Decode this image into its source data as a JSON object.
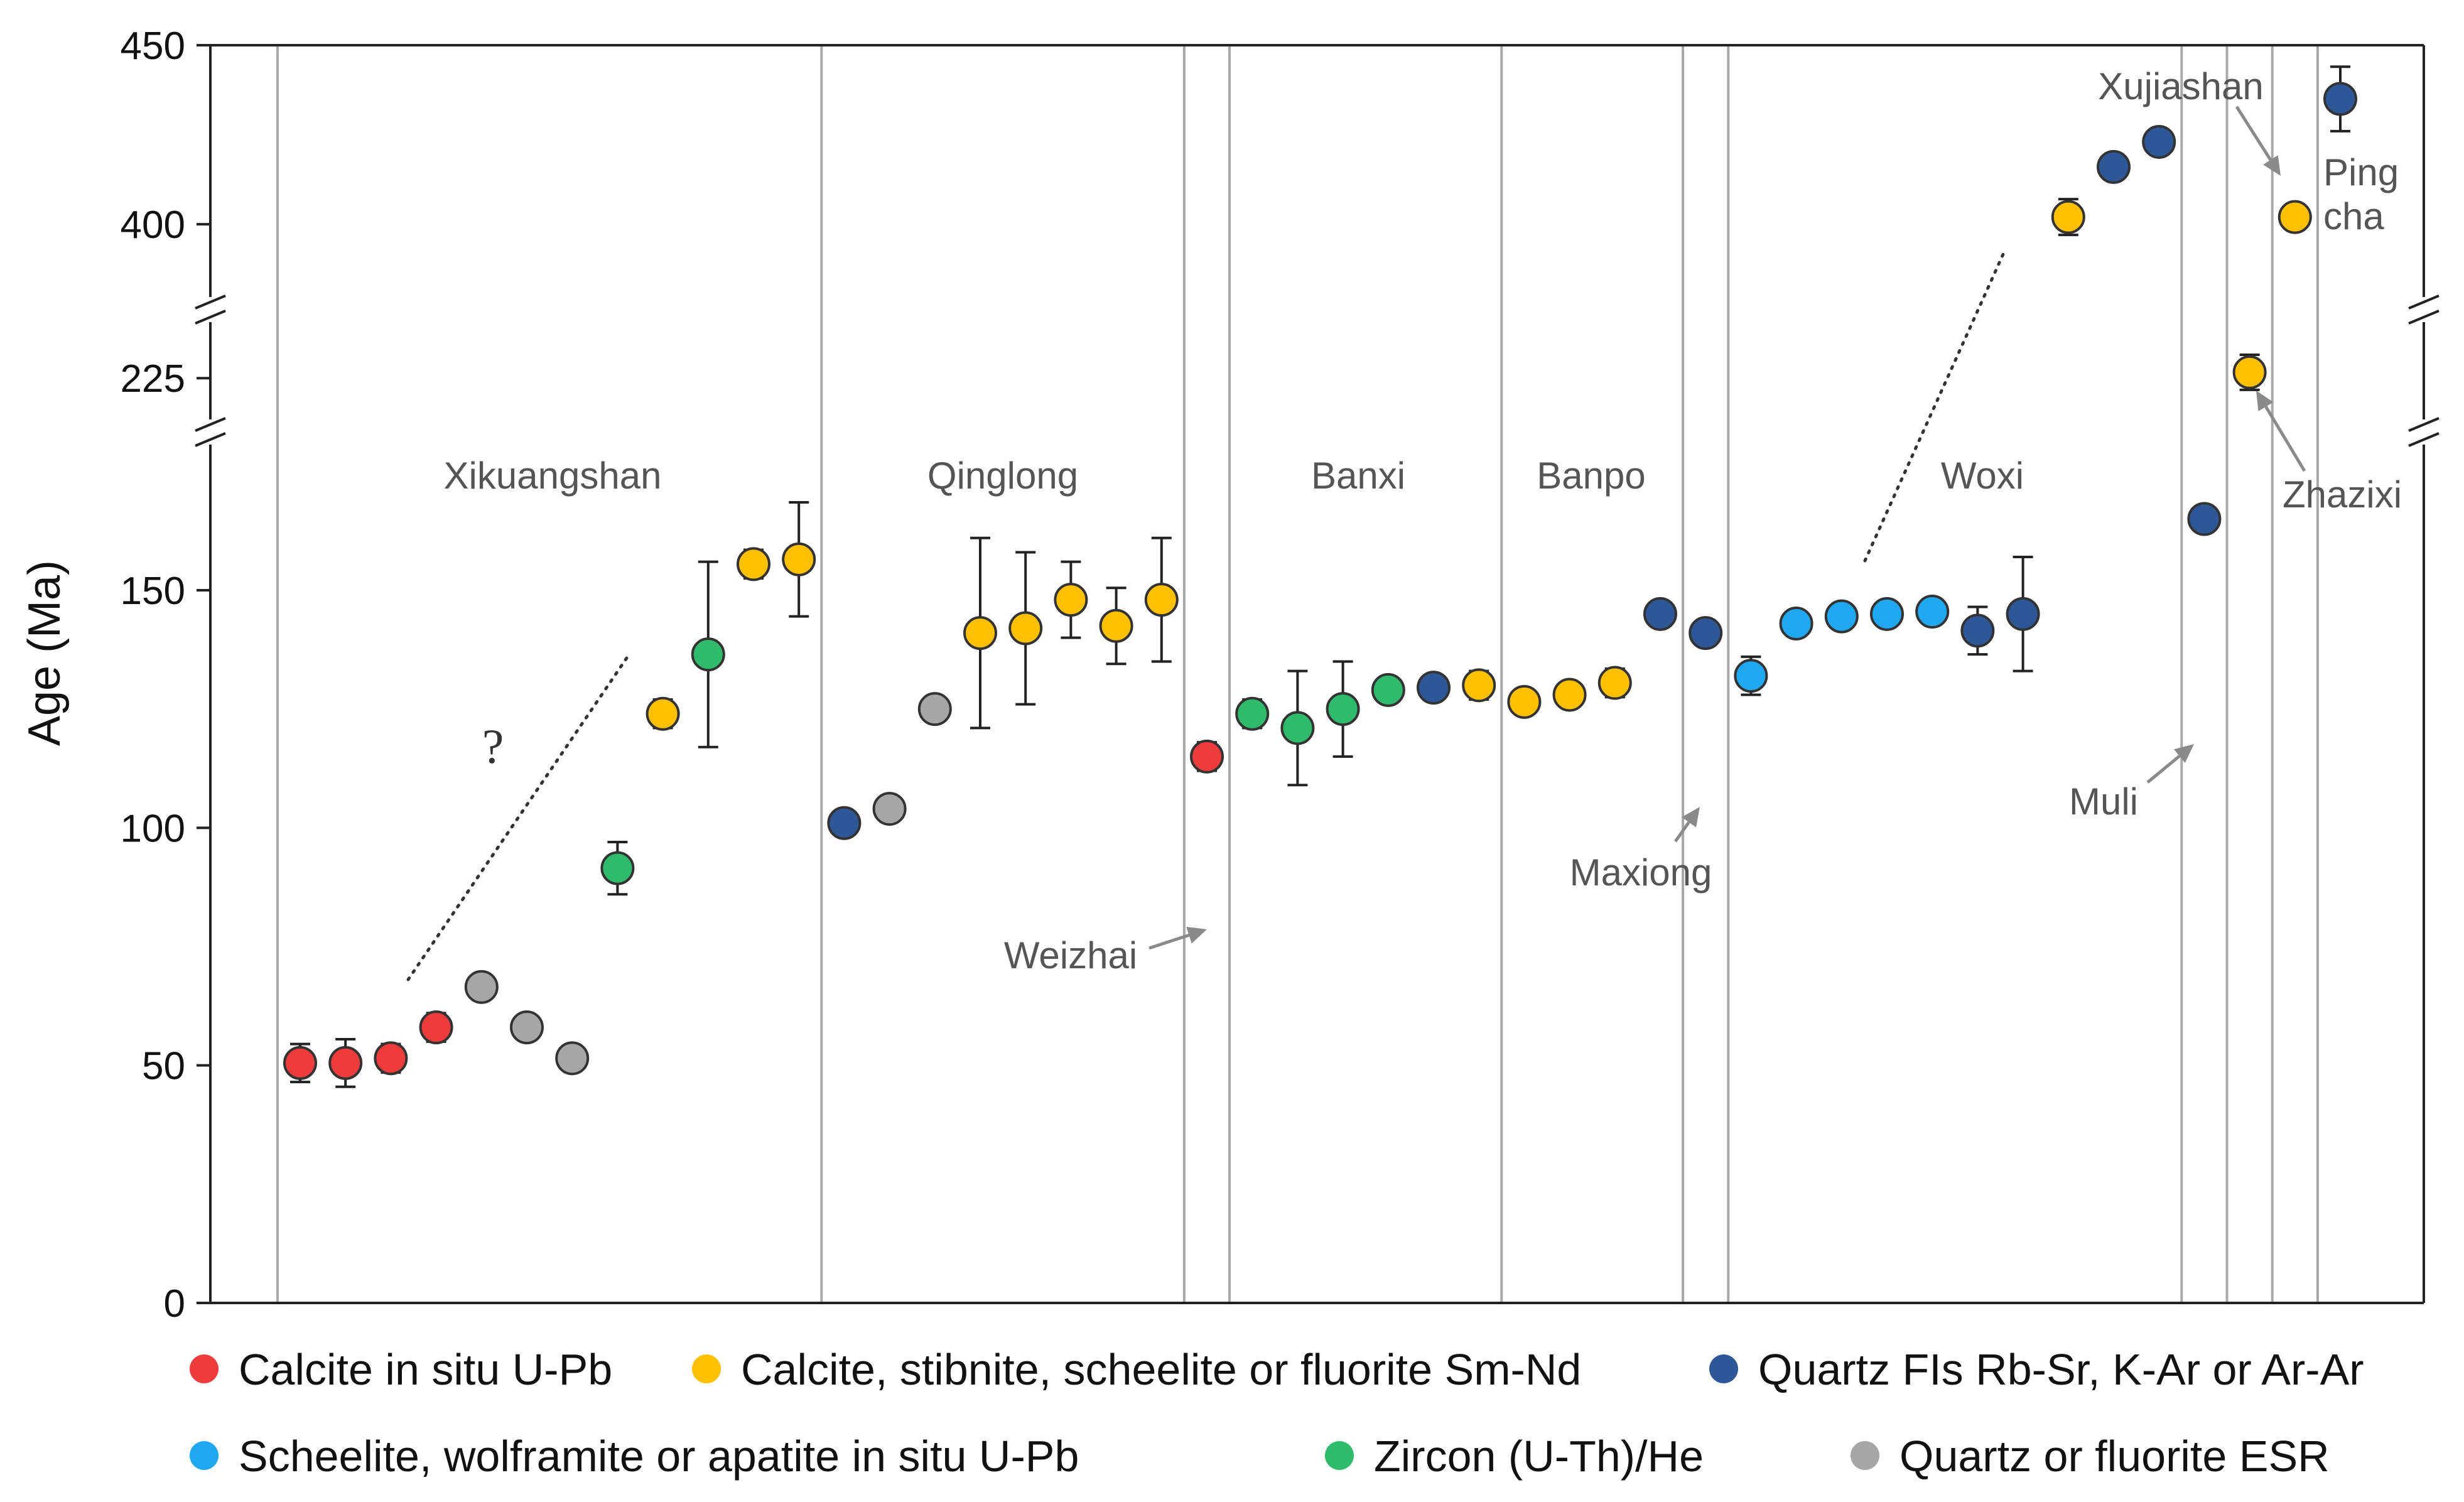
{
  "chart_data": {
    "type": "scatter",
    "title": "",
    "xlabel": "",
    "ylabel": "Age (Ma)",
    "y_axis": {
      "segments": [
        {
          "range": [
            0,
            180
          ],
          "ticks": [
            0,
            50,
            100,
            150
          ]
        },
        {
          "range": [
            213,
            232
          ],
          "ticks": [
            225
          ]
        },
        {
          "range": [
            383,
            450
          ],
          "ticks": [
            400,
            450
          ]
        }
      ],
      "tick_labels": [
        "0",
        "50",
        "100",
        "150",
        "225",
        "400",
        "450"
      ]
    },
    "deposits": [
      {
        "name": "Xikuangshan",
        "from_index": 0,
        "to_index": 12
      },
      {
        "name": "Qinglong",
        "from_index": 12,
        "to_index": 20
      },
      {
        "name": "Weizhai",
        "from_index": 20,
        "to_index": 21
      },
      {
        "name": "Banxi",
        "from_index": 21,
        "to_index": 27
      },
      {
        "name": "Banpo",
        "from_index": 27,
        "to_index": 31
      },
      {
        "name": "Maxiong",
        "from_index": 31,
        "to_index": 32
      },
      {
        "name": "Woxi",
        "from_index": 32,
        "to_index": 42
      },
      {
        "name": "Muli",
        "from_index": 42,
        "to_index": 43
      },
      {
        "name": "Zhazixi",
        "from_index": 43,
        "to_index": 44
      },
      {
        "name": "Xujiashan",
        "from_index": 44,
        "to_index": 45
      },
      {
        "name": "Ping cha",
        "from_index": 45,
        "to_index": 46
      }
    ],
    "annotations": {
      "question_mark": "?",
      "pingcha_line1": "Ping",
      "pingcha_line2": "cha"
    },
    "series": [
      {
        "key": "calcite_upb",
        "name": "Calcite in situ U-Pb",
        "color": "#ee3b3b",
        "points": [
          {
            "x": 0,
            "y": 50.5,
            "err": 4
          },
          {
            "x": 1,
            "y": 50.5,
            "err": 5
          },
          {
            "x": 2,
            "y": 51.5,
            "err": 3
          },
          {
            "x": 3,
            "y": 58,
            "err": 3
          },
          {
            "x": 20,
            "y": 115,
            "err": 3
          }
        ]
      },
      {
        "key": "smnd",
        "name": "Calcite, stibnite, scheelite or fluorite Sm-Nd",
        "color": "#ffc000",
        "points": [
          {
            "x": 8,
            "y": 124,
            "err": 3
          },
          {
            "x": 10,
            "y": 155.5,
            "err": 3
          },
          {
            "x": 11,
            "y": 156.5,
            "err": 12
          },
          {
            "x": 15,
            "y": 141,
            "err": 20
          },
          {
            "x": 16,
            "y": 142,
            "err": 16
          },
          {
            "x": 17,
            "y": 148,
            "err": 8
          },
          {
            "x": 18,
            "y": 142.5,
            "err": 8
          },
          {
            "x": 19,
            "y": 148,
            "err": 13
          },
          {
            "x": 26,
            "y": 130,
            "err": 3
          },
          {
            "x": 27,
            "y": 126.5,
            "err": 2.5
          },
          {
            "x": 28,
            "y": 128,
            "err": 2.5
          },
          {
            "x": 29,
            "y": 130.5,
            "err": 3
          },
          {
            "x": 39,
            "y": 402,
            "err": 5
          },
          {
            "x": 43,
            "y": 226,
            "err": 3
          },
          {
            "x": 44,
            "y": 402,
            "err": 2
          }
        ]
      },
      {
        "key": "quartz_fis",
        "name": "Quartz FIs Rb-Sr, K-Ar or Ar-Ar",
        "color": "#2d5797",
        "points": [
          {
            "x": 12,
            "y": 101,
            "err": 1
          },
          {
            "x": 25,
            "y": 129.5,
            "err": 2
          },
          {
            "x": 30,
            "y": 145,
            "err": 1
          },
          {
            "x": 31,
            "y": 141,
            "err": 1
          },
          {
            "x": 37,
            "y": 141.5,
            "err": 5
          },
          {
            "x": 38,
            "y": 145,
            "err": 12
          },
          {
            "x": 40,
            "y": 416,
            "err": 1
          },
          {
            "x": 41,
            "y": 423,
            "err": 1
          },
          {
            "x": 42,
            "y": 165,
            "err": 1
          },
          {
            "x": 45,
            "y": 435,
            "err": 9
          }
        ]
      },
      {
        "key": "scheelite_upb",
        "name": "Scheelite, wolframite or apatite in situ U-Pb",
        "color": "#1fa8f0",
        "points": [
          {
            "x": 32,
            "y": 132,
            "err": 4
          },
          {
            "x": 33,
            "y": 143,
            "err": 2
          },
          {
            "x": 34,
            "y": 144.5,
            "err": 2
          },
          {
            "x": 35,
            "y": 145,
            "err": 2
          },
          {
            "x": 36,
            "y": 145.5,
            "err": 2
          }
        ]
      },
      {
        "key": "zircon_he",
        "name": "Zircon (U-Th)/He",
        "color": "#2fbb6b",
        "points": [
          {
            "x": 7,
            "y": 91.5,
            "err": 5.5
          },
          {
            "x": 9,
            "y": 136.5,
            "err": 19.5
          },
          {
            "x": 21,
            "y": 124,
            "err": 3
          },
          {
            "x": 22,
            "y": 121,
            "err": 12
          },
          {
            "x": 23,
            "y": 125,
            "err": 10
          },
          {
            "x": 24,
            "y": 129,
            "err": 2
          }
        ]
      },
      {
        "key": "quartz_esr",
        "name": "Quartz or fluorite ESR",
        "color": "#a6a6a6",
        "points": [
          {
            "x": 4,
            "y": 66.5,
            "err": 0
          },
          {
            "x": 5,
            "y": 58,
            "err": 0
          },
          {
            "x": 6,
            "y": 51.5,
            "err": 0
          },
          {
            "x": 13,
            "y": 104,
            "err": 0
          },
          {
            "x": 14,
            "y": 125,
            "err": 0
          }
        ]
      }
    ]
  }
}
